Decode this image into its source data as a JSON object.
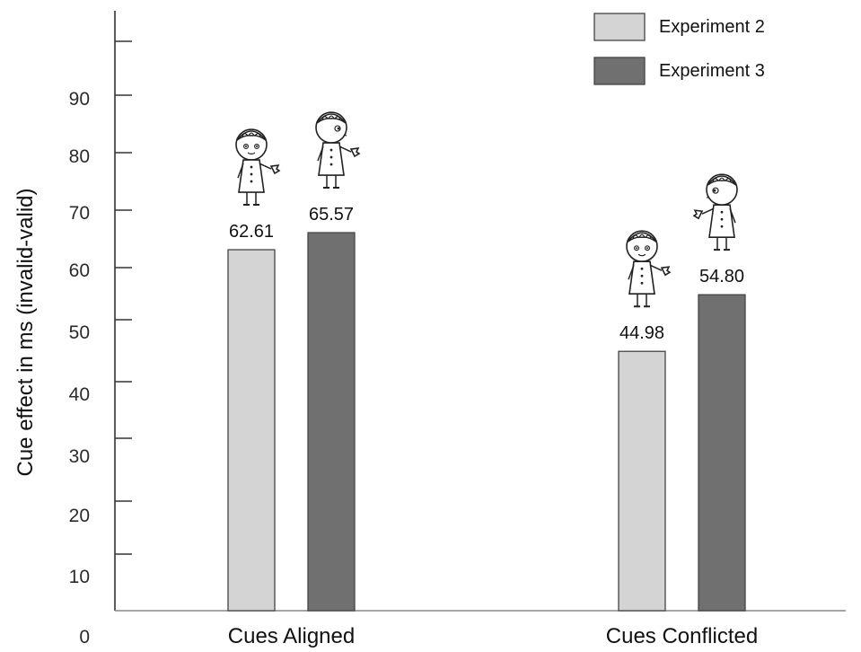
{
  "chart_data": {
    "type": "bar",
    "ylabel": "Cue effect in ms (invalid-valid)",
    "xlabel": "",
    "categories": [
      "Cues Aligned",
      "Cues Conflicted"
    ],
    "series": [
      {
        "name": "Experiment 2",
        "values": [
          62.61,
          44.98
        ],
        "value_labels": [
          "62.61",
          "44.98"
        ],
        "color": "#d4d4d4"
      },
      {
        "name": "Experiment 3",
        "values": [
          65.57,
          54.8
        ],
        "value_labels": [
          "65.57",
          "54.80"
        ],
        "color": "#707070"
      }
    ],
    "yticks": [
      0,
      10,
      20,
      30,
      40,
      50,
      60,
      70,
      80,
      90
    ],
    "ytick_labels": [
      "0",
      "10",
      "20",
      "30",
      "40",
      "50",
      "60",
      "70",
      "80",
      "90"
    ],
    "legend_position": "top-right",
    "grid": false,
    "annotations": [
      {
        "icon": "child-figure-icon",
        "gaze": "front",
        "category": "Cues Aligned",
        "series": "Experiment 2"
      },
      {
        "icon": "child-figure-icon",
        "gaze": "right",
        "category": "Cues Aligned",
        "series": "Experiment 3"
      },
      {
        "icon": "child-figure-icon",
        "gaze": "front",
        "category": "Cues Conflicted",
        "series": "Experiment 2"
      },
      {
        "icon": "child-figure-icon",
        "gaze": "left",
        "category": "Cues Conflicted",
        "series": "Experiment 3"
      }
    ]
  }
}
